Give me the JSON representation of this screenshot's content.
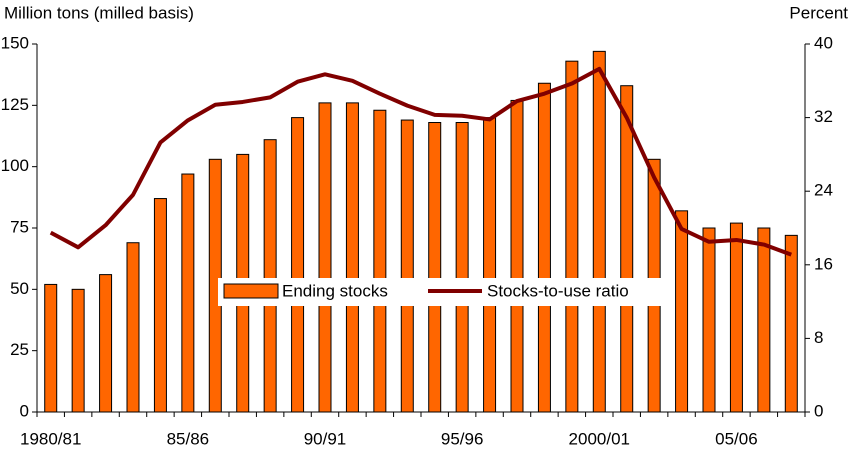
{
  "chart_data": {
    "type": "bar",
    "y_label": "Million tons (milled basis)",
    "y2_label": "Percent",
    "categories": [
      "1980/81",
      null,
      null,
      null,
      null,
      "85/86",
      null,
      null,
      null,
      null,
      "90/91",
      null,
      null,
      null,
      null,
      "95/96",
      null,
      null,
      null,
      null,
      "2000/01",
      null,
      null,
      null,
      null,
      "05/06",
      null,
      null
    ],
    "series": [
      {
        "name": "Ending stocks",
        "type": "bar",
        "color": "#ff6600",
        "values": [
          52,
          50,
          56,
          69,
          87,
          97,
          103,
          105,
          111,
          120,
          126,
          126,
          123,
          119,
          118,
          118,
          120,
          127,
          134,
          143,
          147,
          133,
          103,
          82,
          75,
          77,
          75,
          72
        ]
      },
      {
        "name": "Stocks-to-use ratio",
        "type": "line",
        "color": "#800000",
        "axis": "y2",
        "values": [
          19.5,
          17.9,
          20.3,
          23.6,
          29.3,
          31.7,
          33.4,
          33.7,
          34.2,
          35.9,
          36.7,
          36.0,
          34.6,
          33.3,
          32.3,
          32.2,
          31.8,
          33.8,
          34.6,
          35.7,
          37.3,
          32.0,
          25.5,
          19.9,
          18.5,
          18.7,
          18.2,
          17.1
        ]
      }
    ],
    "ylim": [
      0,
      150
    ],
    "yticks": [
      0,
      25,
      50,
      75,
      100,
      125,
      150
    ],
    "y2lim": [
      0,
      40
    ],
    "y2ticks": [
      0,
      8,
      16,
      24,
      32,
      40
    ]
  }
}
